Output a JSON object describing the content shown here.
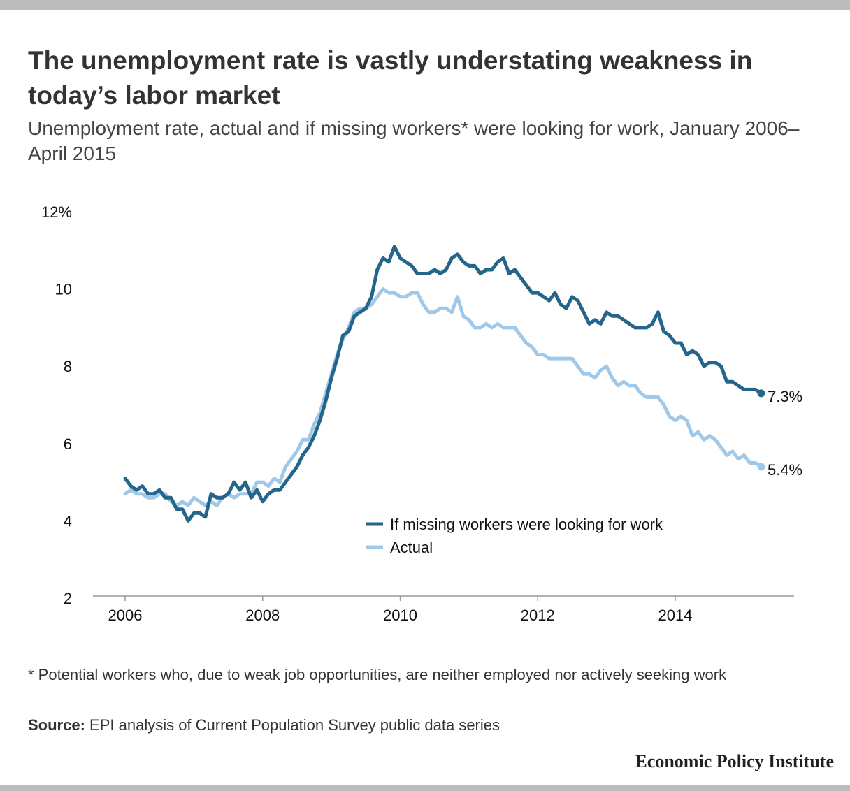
{
  "title": "The unemployment rate is vastly understating weakness in today’s labor market",
  "subtitle": "Unemployment rate, actual and if missing workers* were looking for work, January 2006–April 2015",
  "footnote": "* Potential workers who, due to weak job opportunities, are neither employed nor actively seeking work",
  "source_label": "Source:",
  "source_text": " EPI analysis of Current Population Survey public data series",
  "logo": "Economic Policy Institute",
  "colors": {
    "missing": "#24658a",
    "actual": "#a0c8e8"
  },
  "chart_data": {
    "type": "line",
    "title": "The unemployment rate is vastly understating weakness in today’s labor market",
    "xlabel": "",
    "ylabel": "",
    "x_start": "2006-01",
    "x_end": "2015-04",
    "frequency": "monthly",
    "ylim": [
      2,
      12
    ],
    "y_ticks": [
      "2",
      "4",
      "6",
      "8",
      "10",
      "12%"
    ],
    "y_tick_values": [
      2,
      4,
      6,
      8,
      10,
      12
    ],
    "x_ticks": [
      "2006",
      "2008",
      "2010",
      "2012",
      "2014"
    ],
    "x_tick_values": [
      2006,
      2008,
      2010,
      2012,
      2014
    ],
    "grid": false,
    "legend_placement": "bottom-center",
    "series": [
      {
        "name": "If missing workers were looking for work",
        "key": "missing",
        "end_label": "7.3%",
        "values": [
          5.1,
          4.9,
          4.8,
          4.9,
          4.7,
          4.7,
          4.8,
          4.6,
          4.6,
          4.3,
          4.3,
          4.0,
          4.2,
          4.2,
          4.1,
          4.7,
          4.6,
          4.6,
          4.7,
          5.0,
          4.8,
          5.0,
          4.6,
          4.8,
          4.5,
          4.7,
          4.8,
          4.8,
          5.0,
          5.2,
          5.4,
          5.7,
          5.9,
          6.2,
          6.6,
          7.1,
          7.7,
          8.2,
          8.8,
          8.9,
          9.3,
          9.4,
          9.5,
          9.8,
          10.5,
          10.8,
          10.7,
          11.1,
          10.8,
          10.7,
          10.6,
          10.4,
          10.4,
          10.4,
          10.5,
          10.4,
          10.5,
          10.8,
          10.9,
          10.7,
          10.6,
          10.6,
          10.4,
          10.5,
          10.5,
          10.7,
          10.8,
          10.4,
          10.5,
          10.3,
          10.1,
          9.9,
          9.9,
          9.8,
          9.7,
          9.9,
          9.6,
          9.5,
          9.8,
          9.7,
          9.4,
          9.1,
          9.2,
          9.1,
          9.4,
          9.3,
          9.3,
          9.2,
          9.1,
          9.0,
          9.0,
          9.0,
          9.1,
          9.4,
          8.9,
          8.8,
          8.6,
          8.6,
          8.3,
          8.4,
          8.3,
          8.0,
          8.1,
          8.1,
          8.0,
          7.6,
          7.6,
          7.5,
          7.4,
          7.4,
          7.4,
          7.3
        ]
      },
      {
        "name": "Actual",
        "key": "actual",
        "end_label": "5.4%",
        "values": [
          4.7,
          4.8,
          4.7,
          4.7,
          4.6,
          4.6,
          4.7,
          4.7,
          4.5,
          4.4,
          4.5,
          4.4,
          4.6,
          4.5,
          4.4,
          4.5,
          4.4,
          4.6,
          4.7,
          4.6,
          4.7,
          4.7,
          4.7,
          5.0,
          5.0,
          4.9,
          5.1,
          5.0,
          5.4,
          5.6,
          5.8,
          6.1,
          6.1,
          6.5,
          6.8,
          7.3,
          7.8,
          8.3,
          8.7,
          9.0,
          9.4,
          9.5,
          9.5,
          9.6,
          9.8,
          10.0,
          9.9,
          9.9,
          9.8,
          9.8,
          9.9,
          9.9,
          9.6,
          9.4,
          9.4,
          9.5,
          9.5,
          9.4,
          9.8,
          9.3,
          9.2,
          9.0,
          9.0,
          9.1,
          9.0,
          9.1,
          9.0,
          9.0,
          9.0,
          8.8,
          8.6,
          8.5,
          8.3,
          8.3,
          8.2,
          8.2,
          8.2,
          8.2,
          8.2,
          8.0,
          7.8,
          7.8,
          7.7,
          7.9,
          8.0,
          7.7,
          7.5,
          7.6,
          7.5,
          7.5,
          7.3,
          7.2,
          7.2,
          7.2,
          7.0,
          6.7,
          6.6,
          6.7,
          6.6,
          6.2,
          6.3,
          6.1,
          6.2,
          6.1,
          5.9,
          5.7,
          5.8,
          5.6,
          5.7,
          5.5,
          5.5,
          5.4
        ]
      }
    ]
  }
}
